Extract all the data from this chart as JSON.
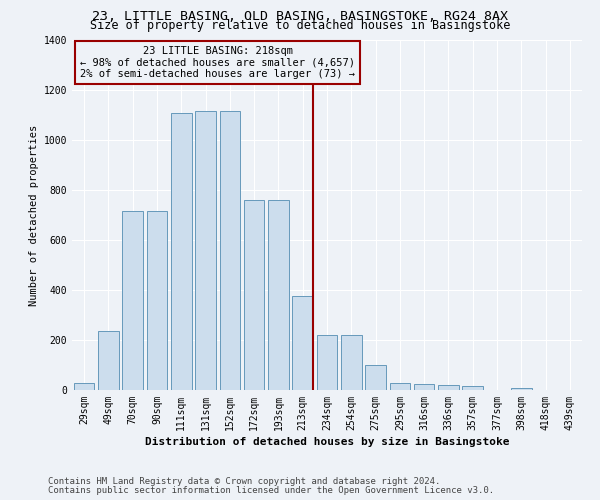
{
  "title_line1": "23, LITTLE BASING, OLD BASING, BASINGSTOKE, RG24 8AX",
  "title_line2": "Size of property relative to detached houses in Basingstoke",
  "xlabel": "Distribution of detached houses by size in Basingstoke",
  "ylabel": "Number of detached properties",
  "categories": [
    "29sqm",
    "49sqm",
    "70sqm",
    "90sqm",
    "111sqm",
    "131sqm",
    "152sqm",
    "172sqm",
    "193sqm",
    "213sqm",
    "234sqm",
    "254sqm",
    "275sqm",
    "295sqm",
    "316sqm",
    "336sqm",
    "357sqm",
    "377sqm",
    "398sqm",
    "418sqm",
    "439sqm"
  ],
  "values": [
    30,
    235,
    715,
    715,
    1110,
    1115,
    1115,
    760,
    760,
    375,
    220,
    220,
    100,
    30,
    25,
    20,
    15,
    0,
    10,
    0,
    0
  ],
  "bar_color": "#ccdded",
  "bar_edge_color": "#6699bb",
  "vline_index": 9,
  "vline_color": "#990000",
  "annotation_text": "23 LITTLE BASING: 218sqm\n← 98% of detached houses are smaller (4,657)\n2% of semi-detached houses are larger (73) →",
  "annotation_box_color": "#990000",
  "ylim": [
    0,
    1400
  ],
  "yticks": [
    0,
    200,
    400,
    600,
    800,
    1000,
    1200,
    1400
  ],
  "footer_line1": "Contains HM Land Registry data © Crown copyright and database right 2024.",
  "footer_line2": "Contains public sector information licensed under the Open Government Licence v3.0.",
  "bg_color": "#eef2f7",
  "grid_color": "#ffffff",
  "title_fontsize": 9.5,
  "subtitle_fontsize": 8.5,
  "axis_label_fontsize": 7.5,
  "tick_fontsize": 7,
  "annotation_fontsize": 7.5,
  "footer_fontsize": 6.5,
  "xlabel_fontsize": 8
}
